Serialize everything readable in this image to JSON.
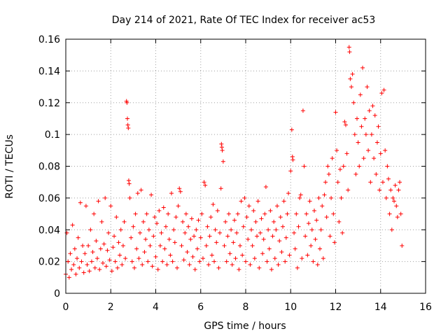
{
  "chart_data": {
    "type": "scatter",
    "title": "Day 214 of 2021, Rate Of TEC Index for receiver ac53",
    "xlabel": "GPS time / hours",
    "ylabel": "ROTI / TECUs",
    "xlim": [
      0,
      16
    ],
    "ylim": [
      0,
      0.16
    ],
    "grid": true,
    "marker": "+",
    "x_ticks": [
      0,
      2,
      4,
      6,
      8,
      10,
      12,
      14,
      16
    ],
    "x_tick_labels": [
      "0",
      "2",
      "4",
      "6",
      "8",
      "10",
      "12",
      "14",
      "16"
    ],
    "y_ticks": [
      0,
      0.02,
      0.04,
      0.06,
      0.08,
      0.1,
      0.12,
      0.14,
      0.16
    ],
    "y_tick_labels": [
      "0",
      "0.02",
      "0.04",
      "0.06",
      "0.08",
      "0.1",
      "0.12",
      "0.14",
      "0.16"
    ],
    "series": [
      {
        "name": "ROTI",
        "color": "#ff0000",
        "points": [
          [
            0.0,
            0.012
          ],
          [
            0.05,
            0.038
          ],
          [
            0.1,
            0.02
          ],
          [
            0.15,
            0.01
          ],
          [
            0.2,
            0.025
          ],
          [
            0.25,
            0.015
          ],
          [
            0.3,
            0.043
          ],
          [
            0.35,
            0.018
          ],
          [
            0.4,
            0.028
          ],
          [
            0.45,
            0.012
          ],
          [
            0.5,
            0.022
          ],
          [
            0.55,
            0.035
          ],
          [
            0.6,
            0.016
          ],
          [
            0.65,
            0.057
          ],
          [
            0.7,
            0.02
          ],
          [
            0.75,
            0.03
          ],
          [
            0.8,
            0.013
          ],
          [
            0.85,
            0.025
          ],
          [
            0.9,
            0.055
          ],
          [
            0.95,
            0.018
          ],
          [
            1.0,
            0.03
          ],
          [
            1.05,
            0.014
          ],
          [
            1.1,
            0.04
          ],
          [
            1.15,
            0.02
          ],
          [
            1.2,
            0.026
          ],
          [
            1.25,
            0.05
          ],
          [
            1.3,
            0.016
          ],
          [
            1.35,
            0.033
          ],
          [
            1.4,
            0.022
          ],
          [
            1.45,
            0.058
          ],
          [
            1.5,
            0.015
          ],
          [
            1.55,
            0.028
          ],
          [
            1.6,
            0.045
          ],
          [
            1.65,
            0.019
          ],
          [
            1.7,
            0.031
          ],
          [
            1.75,
            0.06
          ],
          [
            1.8,
            0.017
          ],
          [
            1.85,
            0.027
          ],
          [
            1.9,
            0.038
          ],
          [
            1.95,
            0.021
          ],
          [
            2.0,
            0.055
          ],
          [
            2.05,
            0.014
          ],
          [
            2.1,
            0.029
          ],
          [
            2.15,
            0.036
          ],
          [
            2.2,
            0.02
          ],
          [
            2.25,
            0.048
          ],
          [
            2.3,
            0.016
          ],
          [
            2.35,
            0.032
          ],
          [
            2.4,
            0.024
          ],
          [
            2.45,
            0.04
          ],
          [
            2.5,
            0.018
          ],
          [
            2.55,
            0.03
          ],
          [
            2.6,
            0.045
          ],
          [
            2.65,
            0.022
          ],
          [
            2.7,
            0.121
          ],
          [
            2.72,
            0.12
          ],
          [
            2.74,
            0.11
          ],
          [
            2.76,
            0.106
          ],
          [
            2.78,
            0.104
          ],
          [
            2.8,
            0.071
          ],
          [
            2.82,
            0.069
          ],
          [
            2.85,
            0.06
          ],
          [
            2.9,
            0.035
          ],
          [
            2.95,
            0.02
          ],
          [
            3.0,
            0.042
          ],
          [
            3.05,
            0.016
          ],
          [
            3.1,
            0.05
          ],
          [
            3.15,
            0.028
          ],
          [
            3.2,
            0.063
          ],
          [
            3.25,
            0.022
          ],
          [
            3.3,
            0.038
          ],
          [
            3.35,
            0.065
          ],
          [
            3.4,
            0.018
          ],
          [
            3.45,
            0.045
          ],
          [
            3.5,
            0.026
          ],
          [
            3.55,
            0.034
          ],
          [
            3.6,
            0.05
          ],
          [
            3.65,
            0.02
          ],
          [
            3.7,
            0.04
          ],
          [
            3.75,
            0.03
          ],
          [
            3.8,
            0.062
          ],
          [
            3.85,
            0.017
          ],
          [
            3.9,
            0.036
          ],
          [
            3.95,
            0.048
          ],
          [
            4.0,
            0.023
          ],
          [
            4.05,
            0.044
          ],
          [
            4.1,
            0.015
          ],
          [
            4.15,
            0.052
          ],
          [
            4.2,
            0.03
          ],
          [
            4.25,
            0.038
          ],
          [
            4.3,
            0.02
          ],
          [
            4.35,
            0.054
          ],
          [
            4.4,
            0.028
          ],
          [
            4.45,
            0.042
          ],
          [
            4.5,
            0.018
          ],
          [
            4.55,
            0.05
          ],
          [
            4.6,
            0.034
          ],
          [
            4.65,
            0.024
          ],
          [
            4.7,
            0.063
          ],
          [
            4.75,
            0.02
          ],
          [
            4.8,
            0.04
          ],
          [
            4.85,
            0.032
          ],
          [
            4.9,
            0.048
          ],
          [
            4.95,
            0.016
          ],
          [
            5.0,
            0.055
          ],
          [
            5.05,
            0.066
          ],
          [
            5.1,
            0.064
          ],
          [
            5.15,
            0.03
          ],
          [
            5.2,
            0.045
          ],
          [
            5.25,
            0.021
          ],
          [
            5.3,
            0.038
          ],
          [
            5.35,
            0.05
          ],
          [
            5.4,
            0.026
          ],
          [
            5.45,
            0.042
          ],
          [
            5.5,
            0.018
          ],
          [
            5.55,
            0.034
          ],
          [
            5.6,
            0.047
          ],
          [
            5.65,
            0.023
          ],
          [
            5.7,
            0.036
          ],
          [
            5.75,
            0.015
          ],
          [
            5.8,
            0.04
          ],
          [
            5.85,
            0.028
          ],
          [
            5.9,
            0.046
          ],
          [
            5.95,
            0.02
          ],
          [
            6.0,
            0.035
          ],
          [
            6.05,
            0.05
          ],
          [
            6.1,
            0.022
          ],
          [
            6.15,
            0.07
          ],
          [
            6.2,
            0.068
          ],
          [
            6.25,
            0.03
          ],
          [
            6.3,
            0.042
          ],
          [
            6.35,
            0.018
          ],
          [
            6.4,
            0.036
          ],
          [
            6.45,
            0.048
          ],
          [
            6.5,
            0.024
          ],
          [
            6.55,
            0.056
          ],
          [
            6.6,
            0.02
          ],
          [
            6.65,
            0.04
          ],
          [
            6.7,
            0.032
          ],
          [
            6.75,
            0.052
          ],
          [
            6.8,
            0.016
          ],
          [
            6.85,
            0.038
          ],
          [
            6.9,
            0.066
          ],
          [
            6.92,
            0.094
          ],
          [
            6.94,
            0.092
          ],
          [
            6.96,
            0.09
          ],
          [
            7.0,
            0.083
          ],
          [
            7.05,
            0.03
          ],
          [
            7.1,
            0.045
          ],
          [
            7.15,
            0.02
          ],
          [
            7.2,
            0.036
          ],
          [
            7.25,
            0.05
          ],
          [
            7.3,
            0.025
          ],
          [
            7.35,
            0.04
          ],
          [
            7.4,
            0.018
          ],
          [
            7.45,
            0.032
          ],
          [
            7.5,
            0.046
          ],
          [
            7.55,
            0.022
          ],
          [
            7.6,
            0.038
          ],
          [
            7.65,
            0.05
          ],
          [
            7.7,
            0.015
          ],
          [
            7.75,
            0.03
          ],
          [
            7.8,
            0.058
          ],
          [
            7.85,
            0.024
          ],
          [
            7.9,
            0.042
          ],
          [
            7.95,
            0.06
          ],
          [
            8.0,
            0.02
          ],
          [
            8.05,
            0.048
          ],
          [
            8.1,
            0.034
          ],
          [
            8.15,
            0.055
          ],
          [
            8.2,
            0.018
          ],
          [
            8.25,
            0.04
          ],
          [
            8.3,
            0.03
          ],
          [
            8.35,
            0.052
          ],
          [
            8.4,
            0.022
          ],
          [
            8.45,
            0.045
          ],
          [
            8.5,
            0.036
          ],
          [
            8.55,
            0.058
          ],
          [
            8.6,
            0.016
          ],
          [
            8.65,
            0.038
          ],
          [
            8.7,
            0.047
          ],
          [
            8.75,
            0.025
          ],
          [
            8.8,
            0.034
          ],
          [
            8.85,
            0.05
          ],
          [
            8.9,
            0.067
          ],
          [
            8.95,
            0.02
          ],
          [
            9.0,
            0.04
          ],
          [
            9.05,
            0.028
          ],
          [
            9.1,
            0.052
          ],
          [
            9.15,
            0.015
          ],
          [
            9.2,
            0.036
          ],
          [
            9.25,
            0.045
          ],
          [
            9.3,
            0.022
          ],
          [
            9.35,
            0.04
          ],
          [
            9.4,
            0.055
          ],
          [
            9.45,
            0.018
          ],
          [
            9.5,
            0.033
          ],
          [
            9.55,
            0.048
          ],
          [
            9.6,
            0.026
          ],
          [
            9.65,
            0.042
          ],
          [
            9.7,
            0.058
          ],
          [
            9.75,
            0.02
          ],
          [
            9.8,
            0.035
          ],
          [
            9.85,
            0.05
          ],
          [
            9.9,
            0.063
          ],
          [
            9.95,
            0.024
          ],
          [
            10.0,
            0.077
          ],
          [
            10.05,
            0.103
          ],
          [
            10.08,
            0.086
          ],
          [
            10.1,
            0.084
          ],
          [
            10.15,
            0.038
          ],
          [
            10.2,
            0.028
          ],
          [
            10.25,
            0.05
          ],
          [
            10.3,
            0.016
          ],
          [
            10.35,
            0.042
          ],
          [
            10.4,
            0.06
          ],
          [
            10.45,
            0.062
          ],
          [
            10.5,
            0.022
          ],
          [
            10.55,
            0.115
          ],
          [
            10.6,
            0.08
          ],
          [
            10.65,
            0.036
          ],
          [
            10.7,
            0.05
          ],
          [
            10.75,
            0.024
          ],
          [
            10.8,
            0.044
          ],
          [
            10.85,
            0.058
          ],
          [
            10.9,
            0.03
          ],
          [
            10.95,
            0.04
          ],
          [
            11.0,
            0.02
          ],
          [
            11.05,
            0.052
          ],
          [
            11.1,
            0.034
          ],
          [
            11.15,
            0.046
          ],
          [
            11.2,
            0.018
          ],
          [
            11.25,
            0.06
          ],
          [
            11.3,
            0.028
          ],
          [
            11.35,
            0.04
          ],
          [
            11.4,
            0.055
          ],
          [
            11.45,
            0.022
          ],
          [
            11.5,
            0.062
          ],
          [
            11.55,
            0.07
          ],
          [
            11.6,
            0.048
          ],
          [
            11.65,
            0.08
          ],
          [
            11.7,
            0.075
          ],
          [
            11.75,
            0.036
          ],
          [
            11.8,
            0.06
          ],
          [
            11.85,
            0.085
          ],
          [
            11.9,
            0.05
          ],
          [
            11.95,
            0.032
          ],
          [
            12.0,
            0.114
          ],
          [
            12.05,
            0.09
          ],
          [
            12.1,
            0.07
          ],
          [
            12.15,
            0.045
          ],
          [
            12.2,
            0.078
          ],
          [
            12.25,
            0.06
          ],
          [
            12.3,
            0.038
          ],
          [
            12.35,
            0.08
          ],
          [
            12.4,
            0.108
          ],
          [
            12.45,
            0.106
          ],
          [
            12.5,
            0.088
          ],
          [
            12.55,
            0.065
          ],
          [
            12.6,
            0.155
          ],
          [
            12.62,
            0.152
          ],
          [
            12.65,
            0.135
          ],
          [
            12.7,
            0.13
          ],
          [
            12.75,
            0.138
          ],
          [
            12.8,
            0.12
          ],
          [
            12.85,
            0.1
          ],
          [
            12.9,
            0.075
          ],
          [
            12.95,
            0.11
          ],
          [
            13.0,
            0.095
          ],
          [
            13.05,
            0.08
          ],
          [
            13.1,
            0.125
          ],
          [
            13.15,
            0.105
          ],
          [
            13.2,
            0.142
          ],
          [
            13.25,
            0.085
          ],
          [
            13.3,
            0.11
          ],
          [
            13.35,
            0.1
          ],
          [
            13.4,
            0.13
          ],
          [
            13.45,
            0.09
          ],
          [
            13.5,
            0.115
          ],
          [
            13.55,
            0.07
          ],
          [
            13.6,
            0.1
          ],
          [
            13.65,
            0.118
          ],
          [
            13.7,
            0.085
          ],
          [
            13.75,
            0.112
          ],
          [
            13.8,
            0.075
          ],
          [
            13.85,
            0.095
          ],
          [
            13.9,
            0.105
          ],
          [
            13.95,
            0.065
          ],
          [
            14.0,
            0.088
          ],
          [
            14.05,
            0.126
          ],
          [
            14.1,
            0.07
          ],
          [
            14.15,
            0.128
          ],
          [
            14.2,
            0.09
          ],
          [
            14.25,
            0.06
          ],
          [
            14.3,
            0.08
          ],
          [
            14.35,
            0.072
          ],
          [
            14.4,
            0.05
          ],
          [
            14.45,
            0.065
          ],
          [
            14.5,
            0.04
          ],
          [
            14.55,
            0.06
          ],
          [
            14.6,
            0.058
          ],
          [
            14.65,
            0.068
          ],
          [
            14.7,
            0.055
          ],
          [
            14.75,
            0.048
          ],
          [
            14.8,
            0.065
          ],
          [
            14.85,
            0.07
          ],
          [
            14.9,
            0.05
          ],
          [
            14.95,
            0.03
          ]
        ]
      }
    ]
  }
}
